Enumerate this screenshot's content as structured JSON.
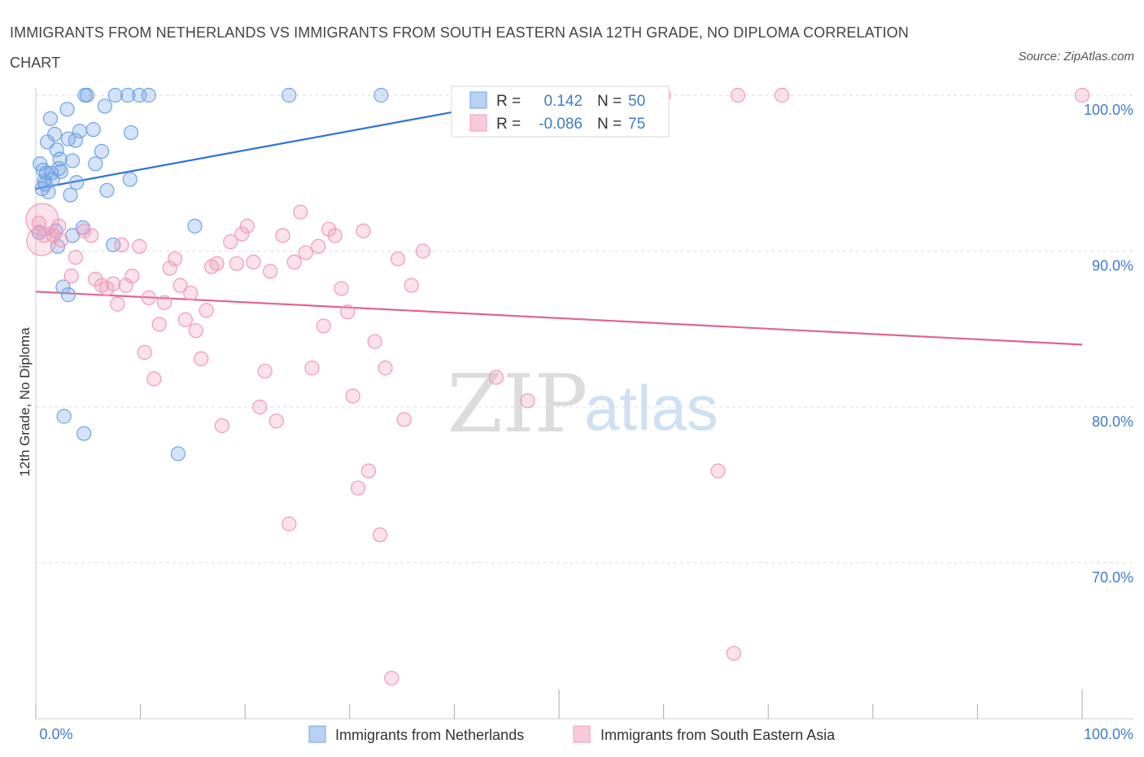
{
  "title": "IMMIGRANTS FROM NETHERLANDS VS IMMIGRANTS FROM SOUTH EASTERN ASIA 12TH GRADE, NO DIPLOMA CORRELATION CHART",
  "source": "Source: ZipAtlas.com",
  "watermark": {
    "zip": "ZIP",
    "atlas": "atlas"
  },
  "colors": {
    "blue": "#6fa3e6",
    "blue_line": "#2f72d2",
    "pink": "#f09ab8",
    "pink_line": "#e0648e",
    "axis_text": "#3f7cc8"
  },
  "stats": {
    "r_label": "R =",
    "n_label": "N =",
    "series": [
      {
        "r": "0.142",
        "n": "50"
      },
      {
        "r": "-0.086",
        "n": "75"
      }
    ]
  },
  "chart_data": {
    "type": "scatter",
    "title": "IMMIGRANTS FROM NETHERLANDS VS IMMIGRANTS FROM SOUTH EASTERN ASIA 12TH GRADE, NO DIPLOMA CORRELATION CHART",
    "xlabel": "",
    "ylabel": "12th Grade, No Diploma",
    "xlim": [
      0,
      100
    ],
    "ylim": [
      60,
      100
    ],
    "x_tick_labels": [
      "0.0%",
      "100.0%"
    ],
    "y_tick_labels": [
      "100.0%",
      "90.0%",
      "80.0%",
      "70.0%"
    ],
    "y_ticks": [
      100,
      90,
      80,
      70
    ],
    "grid": true,
    "legend_position": "bottom",
    "series": [
      {
        "name": "Immigrants from Netherlands",
        "color": "#6fa3e6",
        "trend": {
          "x": [
            0,
            40.5
          ],
          "y": [
            94.0,
            99.0
          ]
        },
        "points": [
          [
            0.3,
            91.2
          ],
          [
            0.4,
            95.6
          ],
          [
            0.6,
            94.0
          ],
          [
            0.7,
            95.2
          ],
          [
            0.8,
            94.5
          ],
          [
            1.0,
            95.0
          ],
          [
            1.1,
            97.0
          ],
          [
            1.2,
            93.8
          ],
          [
            1.4,
            98.5
          ],
          [
            1.5,
            95.0
          ],
          [
            1.6,
            94.6
          ],
          [
            1.8,
            97.5
          ],
          [
            1.9,
            91.3
          ],
          [
            2.0,
            96.5
          ],
          [
            2.1,
            90.3
          ],
          [
            2.3,
            95.9
          ],
          [
            2.4,
            95.1
          ],
          [
            2.6,
            87.7
          ],
          [
            2.7,
            79.4
          ],
          [
            3.0,
            99.1
          ],
          [
            3.1,
            97.2
          ],
          [
            3.1,
            87.2
          ],
          [
            3.3,
            93.6
          ],
          [
            3.5,
            95.8
          ],
          [
            3.8,
            97.1
          ],
          [
            3.9,
            94.4
          ],
          [
            4.2,
            97.7
          ],
          [
            4.5,
            91.5
          ],
          [
            4.6,
            78.3
          ],
          [
            4.7,
            100.0
          ],
          [
            4.9,
            100.0
          ],
          [
            5.5,
            97.8
          ],
          [
            5.7,
            95.6
          ],
          [
            6.3,
            96.4
          ],
          [
            6.6,
            99.3
          ],
          [
            6.8,
            93.9
          ],
          [
            7.4,
            90.4
          ],
          [
            7.6,
            100.0
          ],
          [
            8.8,
            100.0
          ],
          [
            9.0,
            94.6
          ],
          [
            9.1,
            97.6
          ],
          [
            9.9,
            100.0
          ],
          [
            10.8,
            100.0
          ],
          [
            13.6,
            77.0
          ],
          [
            15.2,
            91.6
          ],
          [
            24.2,
            100.0
          ],
          [
            33.0,
            100.0
          ],
          [
            3.5,
            91.0
          ],
          [
            0.9,
            94.3
          ],
          [
            2.2,
            95.3
          ]
        ]
      },
      {
        "name": "Immigrants from South Eastern Asia",
        "color": "#f09ab8",
        "trend": {
          "x": [
            0,
            100
          ],
          "y": [
            87.4,
            84.0
          ]
        },
        "points": [
          [
            0.3,
            91.8
          ],
          [
            0.8,
            91.0
          ],
          [
            1.7,
            91.0
          ],
          [
            2.2,
            91.6
          ],
          [
            2.4,
            90.7
          ],
          [
            3.4,
            88.4
          ],
          [
            3.8,
            89.6
          ],
          [
            4.6,
            91.3
          ],
          [
            5.3,
            91.0
          ],
          [
            5.7,
            88.2
          ],
          [
            6.3,
            87.8
          ],
          [
            6.8,
            87.6
          ],
          [
            7.4,
            87.9
          ],
          [
            7.8,
            86.6
          ],
          [
            8.2,
            90.4
          ],
          [
            8.6,
            87.8
          ],
          [
            9.2,
            88.4
          ],
          [
            9.9,
            90.3
          ],
          [
            10.4,
            83.5
          ],
          [
            10.8,
            87.0
          ],
          [
            11.3,
            81.8
          ],
          [
            11.8,
            85.3
          ],
          [
            12.3,
            86.7
          ],
          [
            12.8,
            88.9
          ],
          [
            13.3,
            89.5
          ],
          [
            13.8,
            87.8
          ],
          [
            14.3,
            85.6
          ],
          [
            14.8,
            87.3
          ],
          [
            15.3,
            84.9
          ],
          [
            15.8,
            83.1
          ],
          [
            16.3,
            86.2
          ],
          [
            16.8,
            89.0
          ],
          [
            17.3,
            89.2
          ],
          [
            17.8,
            78.8
          ],
          [
            18.6,
            90.6
          ],
          [
            19.2,
            89.2
          ],
          [
            19.7,
            91.1
          ],
          [
            20.2,
            91.6
          ],
          [
            20.8,
            89.3
          ],
          [
            21.4,
            80.0
          ],
          [
            21.9,
            82.3
          ],
          [
            22.4,
            88.7
          ],
          [
            23.0,
            79.1
          ],
          [
            23.6,
            91.0
          ],
          [
            24.2,
            72.5
          ],
          [
            24.7,
            89.3
          ],
          [
            25.3,
            92.5
          ],
          [
            25.8,
            89.9
          ],
          [
            26.4,
            82.5
          ],
          [
            27.0,
            90.3
          ],
          [
            27.5,
            85.2
          ],
          [
            28.0,
            91.4
          ],
          [
            28.6,
            91.0
          ],
          [
            29.2,
            87.6
          ],
          [
            29.8,
            86.1
          ],
          [
            30.3,
            80.7
          ],
          [
            30.8,
            74.8
          ],
          [
            31.3,
            91.3
          ],
          [
            31.8,
            75.9
          ],
          [
            32.4,
            84.2
          ],
          [
            32.9,
            71.8
          ],
          [
            33.4,
            82.5
          ],
          [
            34.0,
            62.6
          ],
          [
            34.6,
            89.5
          ],
          [
            35.2,
            79.2
          ],
          [
            35.9,
            87.8
          ],
          [
            37.0,
            90.0
          ],
          [
            44.0,
            81.9
          ],
          [
            47.0,
            80.4
          ],
          [
            60.0,
            100.0
          ],
          [
            65.2,
            75.9
          ],
          [
            66.7,
            64.2
          ],
          [
            67.1,
            100.0
          ],
          [
            71.3,
            100.0
          ],
          [
            100.0,
            100.0
          ]
        ]
      }
    ]
  },
  "legend": [
    {
      "label": "Immigrants from Netherlands"
    },
    {
      "label": "Immigrants from South Eastern Asia"
    }
  ]
}
